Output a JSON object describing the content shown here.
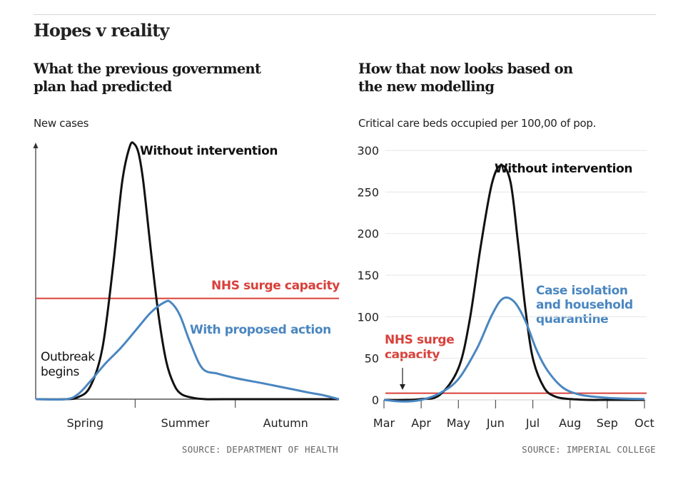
{
  "page_title": "Hopes v reality",
  "colors": {
    "black_curve": "#111111",
    "blue_curve": "#4a86c0",
    "red_capacity": "#d9403a",
    "grid": "#e6e6e6",
    "axis": "#333333",
    "source_text": "#666666"
  },
  "chart_data": [
    {
      "type": "line",
      "title_lines": [
        "What the previous government",
        "plan had predicted"
      ],
      "ylabel": "New cases",
      "categories": [
        "Spring",
        "Summer",
        "Autumn"
      ],
      "y_tick_labels": false,
      "grid": false,
      "x_start": 0,
      "x_end": 10,
      "ylim": [
        0,
        100
      ],
      "category_positions": [
        1.63,
        4.93,
        8.24
      ],
      "series": [
        {
          "name": "Without intervention",
          "color": "#111111",
          "x": [
            0,
            1.0,
            1.4,
            1.8,
            2.2,
            2.55,
            2.85,
            3.1,
            3.25,
            3.4,
            3.55,
            3.8,
            4.05,
            4.3,
            4.55,
            4.8,
            5.2,
            5.6,
            6.2,
            10
          ],
          "y": [
            0,
            0,
            0.8,
            5,
            20,
            52,
            85,
            99,
            100,
            96,
            85,
            58,
            33,
            15,
            6,
            2,
            0.5,
            0,
            0,
            0
          ]
        },
        {
          "name": "With proposed action",
          "color": "#4a86c0",
          "x": [
            0,
            1.0,
            1.4,
            1.8,
            2.3,
            2.8,
            3.3,
            3.8,
            4.25,
            4.45,
            4.75,
            5.1,
            5.5,
            6.0,
            6.5,
            7.0,
            7.5,
            8.0,
            8.5,
            9.0,
            9.5,
            10
          ],
          "y": [
            0,
            0,
            2,
            7,
            14,
            20,
            27,
            34,
            38,
            38,
            33,
            22,
            12,
            10,
            8.5,
            7.3,
            6.2,
            5,
            3.8,
            2.6,
            1.5,
            0
          ]
        }
      ],
      "capacity_line": {
        "label": "NHS surge capacity",
        "y": 39.5
      },
      "annotations": [
        "Outbreak",
        "begins"
      ],
      "source": "SOURCE: DEPARTMENT OF HEALTH"
    },
    {
      "type": "line",
      "title_lines": [
        "How that now looks based on",
        "the new modelling"
      ],
      "ylabel": "Critical care beds occupied per 100,00 of pop.",
      "x_categories": [
        "Mar",
        "Apr",
        "May",
        "Jun",
        "Jul",
        "Aug",
        "Sep",
        "Oct"
      ],
      "y_ticks": [
        0,
        50,
        100,
        150,
        200,
        250,
        300
      ],
      "ylim": [
        0,
        300
      ],
      "grid": true,
      "series": [
        {
          "name": "Without intervention",
          "color": "#111111",
          "x": [
            0,
            0.5,
            1.0,
            1.5,
            2.0,
            2.3,
            2.6,
            2.9,
            3.15,
            3.4,
            3.6,
            3.8,
            4.0,
            4.3,
            4.6,
            5.0,
            5.5,
            6.0,
            7.0
          ],
          "y": [
            0,
            0,
            1,
            6,
            38,
            95,
            185,
            260,
            282,
            262,
            190,
            110,
            50,
            15,
            4,
            1,
            0,
            0,
            0
          ]
        },
        {
          "name": "Case isolation and household quarantine",
          "color": "#4a86c0",
          "x": [
            0,
            0.5,
            1.0,
            1.5,
            2.0,
            2.5,
            2.9,
            3.2,
            3.5,
            3.8,
            4.1,
            4.4,
            4.8,
            5.2,
            5.6,
            6.0,
            6.5,
            7.0
          ],
          "y": [
            0,
            -2,
            0,
            8,
            25,
            62,
            102,
            122,
            118,
            95,
            60,
            35,
            15,
            7,
            4,
            2.5,
            1.5,
            1
          ]
        }
      ],
      "capacity_line": {
        "label_lines": [
          "NHS surge",
          "capacity"
        ],
        "y": 8
      },
      "source": "SOURCE: IMPERIAL COLLEGE"
    }
  ]
}
